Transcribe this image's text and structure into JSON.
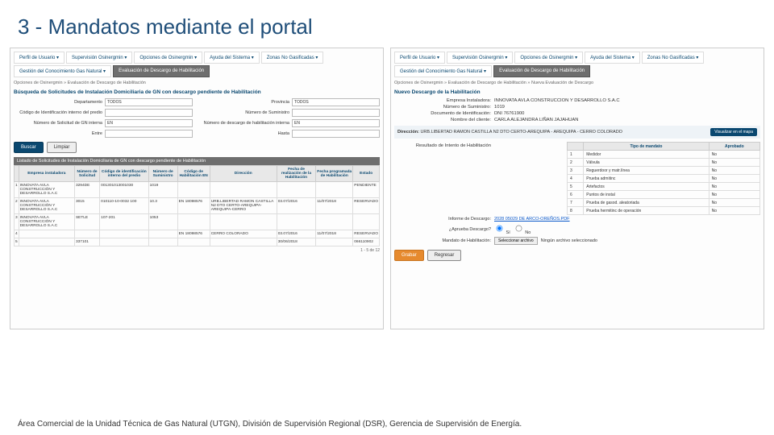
{
  "title": "3 - Mandatos mediante el portal",
  "footer": "Área Comercial de la Unidad Técnica de Gas Natural (UTGN), División de  Supervisión Regional (DSR), Gerencia de Supervisión de Energía.",
  "menu": {
    "items": [
      "Perfil de Usuario ▾",
      "Supervisión Osinergmin ▾",
      "Opciones de Osinergmin ▾",
      "Ayuda del Sistema ▾",
      "Zonas No Gasificadas ▾"
    ],
    "row2a": "Gestión del Conocimiento Gas Natural ▾",
    "row2b_active": "Evaluación de Descargo de Habilitación"
  },
  "left": {
    "breadcrumb": "Opciones de Osinergmin » Evaluación de Descargo de Habilitación",
    "section": "Búsqueda de Solicitudes de Instalación Domiciliaria de GN con descargo pendiente de Habilitación",
    "fields": {
      "departamento": "Departamento",
      "departamento_val": "TODOS",
      "provincia": "Provincia",
      "provincia_val": "TODOS",
      "codigo_interno": "Código de Identificación interno del predio",
      "num_suministro": "Número de Suministro",
      "num_solicitud": "Número de Solicitud de GN interna",
      "num_solicitud_val": "EN",
      "num_descargo": "Número de descargo de habilitación interna",
      "num_descargo_val": "EN",
      "entre": "Entre",
      "desde": "Desde",
      "hasta": "Hasta"
    },
    "buttons": {
      "buscar": "Buscar",
      "limpiar": "Limpiar"
    },
    "table_caption": "Listado de Solicitudes de Instalación Domiciliaria de GN con descargo pendiente de Habilitación",
    "columns": [
      "",
      "Empresa instaladora",
      "Número de Solicitud",
      "Código de identificación interno del predio",
      "Número de Suministro",
      "Código de Habilitación EN",
      "Dirección",
      "Fecha de realización de la Habilitación",
      "Fecha programada de Habilitación",
      "Estado"
    ],
    "rows": [
      [
        "1",
        "INNOVATA AVLA CONSTRUCCIÓN Y DESARROLLO S.A.C",
        "3294DE",
        "001301013001030",
        "1019",
        "",
        "",
        "",
        "",
        "PENDIENTE"
      ],
      [
        "2",
        "INNOVATA AVLA CONSTRUCCIÓN Y DESARROLLO S.A.C",
        "3015",
        "010110-10-0032 100",
        "10.3",
        "EN 18098576",
        "URB.LIBERTAD RAMON CASTILLA N2 DTO CERTO-AREQUIPA-AREQUIPA-CERRO",
        "03.07/2016",
        "11/07/2018",
        "RESERVADO"
      ],
      [
        "3",
        "INNOVATA AVLA CONSTRUCCIÓN Y DESARROLLO S.A.C",
        "SETLE",
        "107-201",
        "1053",
        "",
        "",
        "",
        "",
        ""
      ],
      [
        "4",
        "",
        "",
        "",
        "",
        "EN 18098576",
        "CERRO COLORADO",
        "03.07/2016",
        "11/07/2018",
        "RESERVADO"
      ],
      [
        "5",
        "",
        "337101",
        "",
        "",
        "",
        "",
        "30/06/2018",
        "",
        "066110902"
      ]
    ],
    "pager": "1 - 5 de 12"
  },
  "right": {
    "breadcrumb": "Opciones de Osinergmin » Evaluación de Descargo de Habilitación » Nueva Evaluación de Descargo",
    "section": "Nuevo Descargo de la Habilitación",
    "info": [
      {
        "lbl": "Empresa Instaladora:",
        "val": "INNOVATA AVLA CONSTRUCCION Y DESARROLLO S.A.C"
      },
      {
        "lbl": "Número de Suministro:",
        "val": "1019"
      },
      {
        "lbl": "Documento de Identificación:",
        "val": "DNI 76761900"
      },
      {
        "lbl": "Nombre del cliente:",
        "val": "CARLA ALEJANDRA LIÑAN JAJAHUAN"
      }
    ],
    "addr_label": "Dirección:",
    "addr": "URB.LIBERTAD RAMON CASTILLA N2 DTO CERTO-AREQUIPA - AREQUIPA - CERRO COLORADO",
    "addr_btn": "Visualizar en el mapa",
    "result_label": "Resultado de Intento de Habilitación",
    "table": {
      "columns": [
        "",
        "Tipo de mandato",
        "Aprobado"
      ],
      "rows": [
        [
          "1",
          "Medidor",
          "No"
        ],
        [
          "2",
          "Válvula",
          "No"
        ],
        [
          "3",
          "Reguerdoor y matr.línea",
          "No"
        ],
        [
          "4",
          "Prueba admitinc",
          "No"
        ],
        [
          "5",
          "Artefactos",
          "No"
        ],
        [
          "6",
          "Puntos de instal",
          "No"
        ],
        [
          "7",
          "Prueba de gasod. aleatoriada",
          "No"
        ],
        [
          "8",
          "Prueba hermitinc de operación",
          "No"
        ]
      ]
    },
    "informe_lbl": "Informe de Descargo:",
    "informe_link": "2028 05029 DE ARCO-OREÑOS.PDF",
    "aprueba_lbl": "¿Aprueba Descargo?",
    "aprueba_si": "Sí",
    "aprueba_no": "No",
    "mandato_lbl": "Mandato de Habilitación:",
    "file_btn": "Seleccionar archivo",
    "file_none": "Ningún archivo seleccionado",
    "grabar": "Grabar",
    "regresar": "Regresar"
  }
}
